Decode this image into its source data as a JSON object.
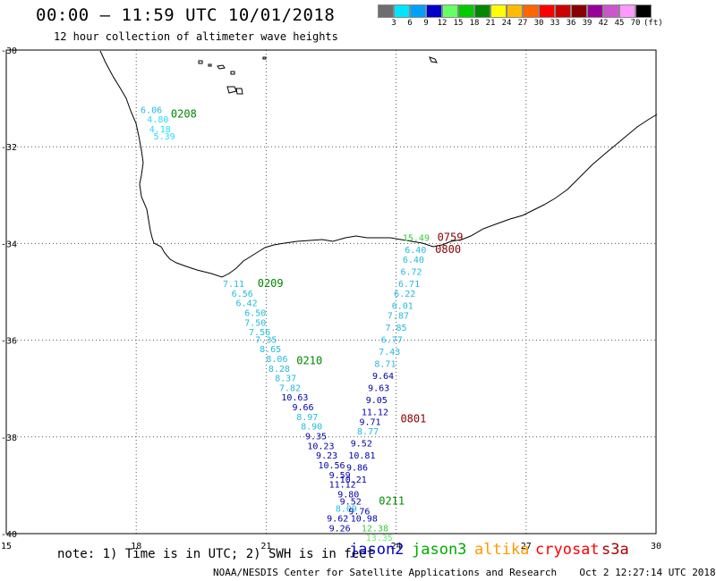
{
  "header": {
    "title": "00:00 – 11:59 UTC 10/01/2018",
    "subtitle": "12 hour collection of altimeter wave heights"
  },
  "color_scale": {
    "unit": "(ft)",
    "bins": [
      {
        "label": "3",
        "color": "#6e6e6e"
      },
      {
        "label": "6",
        "color": "#00e5ff"
      },
      {
        "label": "9",
        "color": "#00a0ff"
      },
      {
        "label": "12",
        "color": "#0000cc"
      },
      {
        "label": "15",
        "color": "#66ff66"
      },
      {
        "label": "18",
        "color": "#00cc00"
      },
      {
        "label": "21",
        "color": "#008800"
      },
      {
        "label": "24",
        "color": "#ffff00"
      },
      {
        "label": "27",
        "color": "#ffbb00"
      },
      {
        "label": "30",
        "color": "#ff6600"
      },
      {
        "label": "33",
        "color": "#ff0000"
      },
      {
        "label": "36",
        "color": "#cc0000"
      },
      {
        "label": "39",
        "color": "#880000"
      },
      {
        "label": "42",
        "color": "#990099"
      },
      {
        "label": "45",
        "color": "#cc55cc"
      },
      {
        "label": "70",
        "color": "#ff99ff"
      },
      {
        "label": "",
        "color": "#000000"
      }
    ]
  },
  "axes": {
    "lon_ticks": [
      "15",
      "18",
      "21",
      "24",
      "27",
      "30"
    ],
    "lat_ticks": [
      "-30",
      "-32",
      "-34",
      "-36",
      "-38",
      "-40"
    ]
  },
  "time_labels": [
    {
      "text": "0208",
      "lon": 18.8,
      "lat": -31.4,
      "color": "#008800"
    },
    {
      "text": "0209",
      "lon": 20.8,
      "lat": -34.9,
      "color": "#008800"
    },
    {
      "text": "0210",
      "lon": 21.7,
      "lat": -36.5,
      "color": "#008800"
    },
    {
      "text": "0211",
      "lon": 23.6,
      "lat": -39.4,
      "color": "#008800"
    },
    {
      "text": "0759",
      "lon": 24.95,
      "lat": -33.95,
      "color": "#880000"
    },
    {
      "text": "0800",
      "lon": 24.9,
      "lat": -34.2,
      "color": "#880000"
    },
    {
      "text": "0801",
      "lon": 24.1,
      "lat": -37.7,
      "color": "#880000"
    }
  ],
  "observations": [
    {
      "v": "6.06",
      "lon": 18.1,
      "lat": -31.3,
      "color": "#22bbdd"
    },
    {
      "v": "4.80",
      "lon": 18.25,
      "lat": -31.5,
      "color": "#22ddff"
    },
    {
      "v": "4.18",
      "lon": 18.3,
      "lat": -31.7,
      "color": "#22ddff"
    },
    {
      "v": "5.39",
      "lon": 18.4,
      "lat": -31.85,
      "color": "#22ddff"
    },
    {
      "v": "7.11",
      "lon": 20.0,
      "lat": -34.9,
      "color": "#22bbdd"
    },
    {
      "v": "6.56",
      "lon": 20.2,
      "lat": -35.1,
      "color": "#22bbdd"
    },
    {
      "v": "6.42",
      "lon": 20.3,
      "lat": -35.3,
      "color": "#22bbdd"
    },
    {
      "v": "6.50",
      "lon": 20.5,
      "lat": -35.5,
      "color": "#22bbdd"
    },
    {
      "v": "7.50",
      "lon": 20.5,
      "lat": -35.7,
      "color": "#22bbdd"
    },
    {
      "v": "7.56",
      "lon": 20.6,
      "lat": -35.9,
      "color": "#22bbdd"
    },
    {
      "v": "7.35",
      "lon": 20.75,
      "lat": -36.05,
      "color": "#22bbdd"
    },
    {
      "v": "8.65",
      "lon": 20.85,
      "lat": -36.25,
      "color": "#22bbdd"
    },
    {
      "v": "8.06",
      "lon": 21.0,
      "lat": -36.45,
      "color": "#22bbdd"
    },
    {
      "v": "8.28",
      "lon": 21.05,
      "lat": -36.65,
      "color": "#22bbdd"
    },
    {
      "v": "8.37",
      "lon": 21.2,
      "lat": -36.85,
      "color": "#22bbdd"
    },
    {
      "v": "7.82",
      "lon": 21.3,
      "lat": -37.05,
      "color": "#22bbdd"
    },
    {
      "v": "10.63",
      "lon": 21.35,
      "lat": -37.25,
      "color": "#0000aa"
    },
    {
      "v": "9.66",
      "lon": 21.6,
      "lat": -37.45,
      "color": "#0000aa"
    },
    {
      "v": "8.97",
      "lon": 21.7,
      "lat": -37.65,
      "color": "#22bbdd"
    },
    {
      "v": "8.90",
      "lon": 21.8,
      "lat": -37.85,
      "color": "#22bbdd"
    },
    {
      "v": "9.35",
      "lon": 21.9,
      "lat": -38.05,
      "color": "#0000aa"
    },
    {
      "v": "10.23",
      "lon": 21.95,
      "lat": -38.25,
      "color": "#0000aa"
    },
    {
      "v": "9.23",
      "lon": 22.15,
      "lat": -38.45,
      "color": "#0000aa"
    },
    {
      "v": "10.56",
      "lon": 22.2,
      "lat": -38.65,
      "color": "#0000aa"
    },
    {
      "v": "9.59",
      "lon": 22.45,
      "lat": -38.85,
      "color": "#0000aa"
    },
    {
      "v": "11.12",
      "lon": 22.45,
      "lat": -39.05,
      "color": "#0000aa"
    },
    {
      "v": "9.80",
      "lon": 22.65,
      "lat": -39.25,
      "color": "#0000aa"
    },
    {
      "v": "9.52",
      "lon": 22.7,
      "lat": -39.4,
      "color": "#0000aa"
    },
    {
      "v": "8.09",
      "lon": 22.6,
      "lat": -39.55,
      "color": "#22bbdd"
    },
    {
      "v": "9.62",
      "lon": 22.4,
      "lat": -39.75,
      "color": "#0000aa"
    },
    {
      "v": "9.26",
      "lon": 22.45,
      "lat": -39.95,
      "color": "#0000aa"
    },
    {
      "v": "15.49",
      "lon": 24.15,
      "lat": -33.95,
      "color": "#33cc33"
    },
    {
      "v": "6.40",
      "lon": 24.2,
      "lat": -34.2,
      "color": "#22bbdd"
    },
    {
      "v": "6.40",
      "lon": 24.15,
      "lat": -34.4,
      "color": "#22bbdd"
    },
    {
      "v": "6.72",
      "lon": 24.1,
      "lat": -34.65,
      "color": "#22bbdd"
    },
    {
      "v": "6.71",
      "lon": 24.05,
      "lat": -34.9,
      "color": "#22bbdd"
    },
    {
      "v": "6.22",
      "lon": 23.95,
      "lat": -35.1,
      "color": "#22bbdd"
    },
    {
      "v": "6.01",
      "lon": 23.9,
      "lat": -35.35,
      "color": "#22bbdd"
    },
    {
      "v": "7.87",
      "lon": 23.8,
      "lat": -35.55,
      "color": "#22bbdd"
    },
    {
      "v": "7.85",
      "lon": 23.75,
      "lat": -35.8,
      "color": "#22bbdd"
    },
    {
      "v": "6.77",
      "lon": 23.65,
      "lat": -36.05,
      "color": "#22bbdd"
    },
    {
      "v": "7.43",
      "lon": 23.6,
      "lat": -36.3,
      "color": "#22bbdd"
    },
    {
      "v": "8.71",
      "lon": 23.5,
      "lat": -36.55,
      "color": "#22bbdd"
    },
    {
      "v": "9.64",
      "lon": 23.45,
      "lat": -36.8,
      "color": "#0000aa"
    },
    {
      "v": "9.63",
      "lon": 23.35,
      "lat": -37.05,
      "color": "#0000aa"
    },
    {
      "v": "9.05",
      "lon": 23.3,
      "lat": -37.3,
      "color": "#0000aa"
    },
    {
      "v": "11.12",
      "lon": 23.2,
      "lat": -37.55,
      "color": "#0000aa"
    },
    {
      "v": "9.71",
      "lon": 23.15,
      "lat": -37.75,
      "color": "#0000aa"
    },
    {
      "v": "8.77",
      "lon": 23.1,
      "lat": -37.95,
      "color": "#22bbdd"
    },
    {
      "v": "9.52",
      "lon": 22.95,
      "lat": -38.2,
      "color": "#0000aa"
    },
    {
      "v": "10.81",
      "lon": 22.9,
      "lat": -38.45,
      "color": "#0000aa"
    },
    {
      "v": "9.86",
      "lon": 22.85,
      "lat": -38.7,
      "color": "#0000aa"
    },
    {
      "v": "10.21",
      "lon": 22.7,
      "lat": -38.95,
      "color": "#0000aa"
    },
    {
      "v": "9.76",
      "lon": 22.9,
      "lat": -39.6,
      "color": "#0000aa"
    },
    {
      "v": "10.98",
      "lon": 22.95,
      "lat": -39.75,
      "color": "#0000aa"
    },
    {
      "v": "12.38",
      "lon": 23.2,
      "lat": -39.95,
      "color": "#33cc33"
    },
    {
      "v": "13.35",
      "lon": 23.3,
      "lat": -40.15,
      "color": "#66ee66"
    }
  ],
  "footer": {
    "note": "note: 1) Time is in UTC; 2) SWH is in feet",
    "satellites": [
      {
        "name": "jason2",
        "color": "#0000cc"
      },
      {
        "name": "jason3",
        "color": "#00aa00"
      },
      {
        "name": "altika",
        "color": "#ff9900"
      },
      {
        "name": "cryosat",
        "color": "#ff0000"
      },
      {
        "name": "s3a",
        "color": "#aa0000"
      }
    ],
    "credit": "NOAA/NESDIS Center for Satellite Applications and Research",
    "timestamp": "Oct  2 12:27:14 UTC 2018"
  }
}
